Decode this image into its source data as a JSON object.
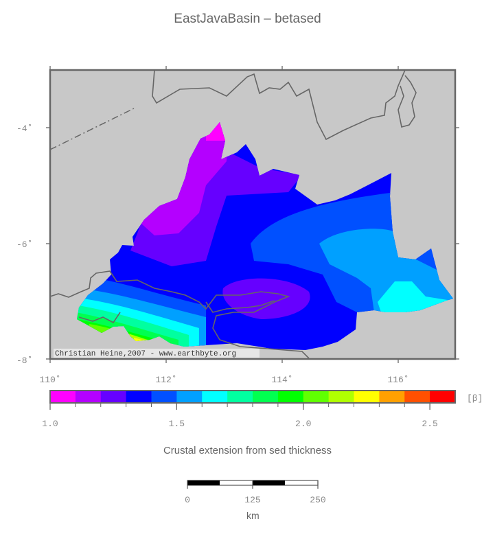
{
  "title": "EastJavaBasin – betased",
  "map": {
    "lon_range": [
      110,
      117
    ],
    "lat_range": [
      -8,
      -3
    ],
    "lon_ticks": [
      "110˚",
      "112˚",
      "114˚",
      "116˚"
    ],
    "lat_ticks": [
      "-4˚",
      "-6˚",
      "-8˚"
    ],
    "background_color": "#c8c8c8",
    "credit": "Christian Heine,2007 - www.earthbyte.org"
  },
  "colorbar": {
    "colors": [
      "#ff00ff",
      "#b400ff",
      "#6600ff",
      "#0000ff",
      "#0050ff",
      "#00a0ff",
      "#00ffff",
      "#00ffa0",
      "#00ff50",
      "#00ff00",
      "#60ff00",
      "#b0ff00",
      "#ffff00",
      "#ffa000",
      "#ff5000",
      "#ff0000"
    ],
    "min": 1.0,
    "max": 2.6,
    "tick_labels": [
      "1.0",
      "1.5",
      "2.0",
      "2.5"
    ],
    "tick_values": [
      1.0,
      1.5,
      2.0,
      2.5
    ],
    "unit_label": "[β]",
    "caption": "Crustal extension from sed thickness"
  },
  "scale_bar": {
    "labels": [
      "0",
      "125",
      "250"
    ],
    "unit": "km"
  }
}
